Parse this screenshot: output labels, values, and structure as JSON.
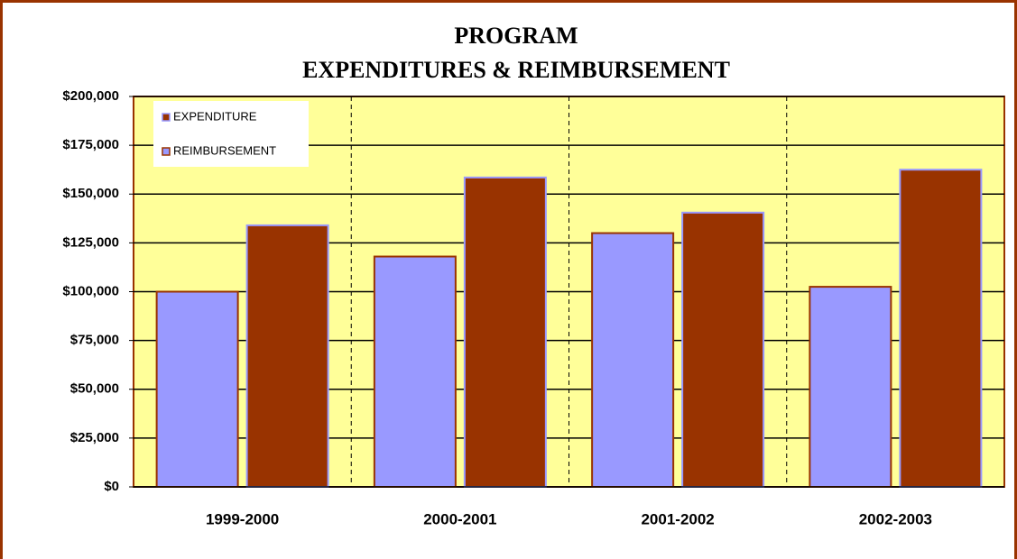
{
  "chart_data": {
    "type": "bar",
    "title": [
      "PROGRAM",
      "EXPENDITURES & REIMBURSEMENT"
    ],
    "categories": [
      "1999-2000",
      "2000-2001",
      "2001-2002",
      "2002-2003"
    ],
    "series": [
      {
        "name": "EXPENDITURE",
        "color": "#993300",
        "values": [
          134000,
          158500,
          140500,
          162500
        ]
      },
      {
        "name": "REIMBURSEMENT",
        "color": "#9999ff",
        "values": [
          100000,
          118000,
          130000,
          102500
        ]
      }
    ],
    "ylim": [
      0,
      200000
    ],
    "yticks": [
      {
        "value": 0,
        "label": "$0"
      },
      {
        "value": 25000,
        "label": "$25,000"
      },
      {
        "value": 50000,
        "label": "$50,000"
      },
      {
        "value": 75000,
        "label": "$75,000"
      },
      {
        "value": 100000,
        "label": "$100,000"
      },
      {
        "value": 125000,
        "label": "$125,000"
      },
      {
        "value": 150000,
        "label": "$150,000"
      },
      {
        "value": 175000,
        "label": "$175,000"
      },
      {
        "value": 200000,
        "label": "$200,000"
      }
    ],
    "grid": true,
    "legend": "upper-left"
  }
}
